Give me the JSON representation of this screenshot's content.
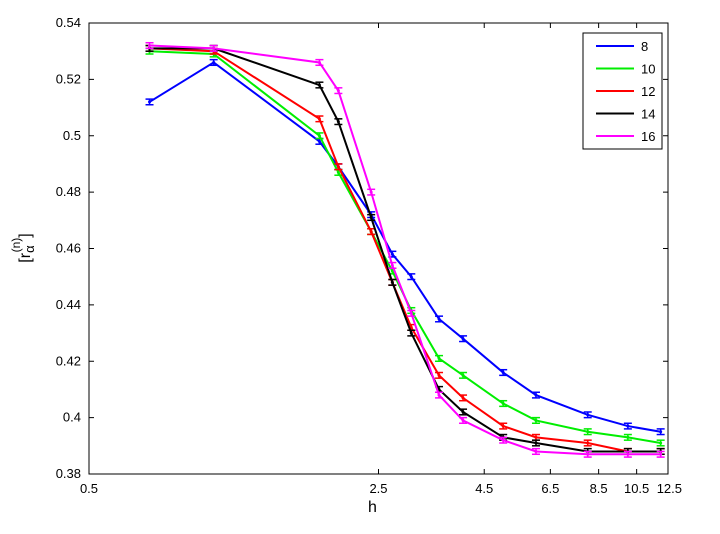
{
  "chart_data": {
    "type": "line",
    "xlabel": "h",
    "ylabel": "[r",
    "ylabel_sub": "α",
    "ylabel_sup": "(n)",
    "ylabel_close": "]",
    "x_scale": "log",
    "xlim": [
      0.5,
      12.5
    ],
    "ylim": [
      0.38,
      0.54
    ],
    "x_ticks": [
      0.5,
      2.5,
      4.5,
      6.5,
      8.5,
      10.5,
      12.5
    ],
    "x_tick_labels": [
      "0.5",
      "2.5",
      "4.5",
      "6.5",
      "8.5",
      "10.5",
      "12.5"
    ],
    "y_ticks": [
      0.38,
      0.4,
      0.42,
      0.44,
      0.46,
      0.48,
      0.5,
      0.52,
      0.54
    ],
    "y_tick_labels": [
      "0.38",
      "0.4",
      "0.42",
      "0.44",
      "0.46",
      "0.48",
      "0.5",
      "0.52",
      "0.54"
    ],
    "legend_position": "top-right",
    "x": [
      0.7,
      1.0,
      1.8,
      2.0,
      2.4,
      2.7,
      3.0,
      3.5,
      4.0,
      5.0,
      6.0,
      8.0,
      10.0,
      12.0
    ],
    "series": [
      {
        "name": "8",
        "color": "#0000ff",
        "values": [
          0.512,
          0.526,
          0.498,
          0.489,
          0.472,
          0.458,
          0.45,
          0.435,
          0.428,
          0.416,
          0.408,
          0.401,
          0.397,
          0.395
        ]
      },
      {
        "name": "10",
        "color": "#00ee00",
        "values": [
          0.53,
          0.529,
          0.5,
          0.487,
          0.466,
          0.452,
          0.438,
          0.421,
          0.415,
          0.405,
          0.399,
          0.395,
          0.393,
          0.391
        ]
      },
      {
        "name": "12",
        "color": "#ff0000",
        "values": [
          0.531,
          0.53,
          0.506,
          0.489,
          0.466,
          0.448,
          0.432,
          0.415,
          0.407,
          0.397,
          0.393,
          0.391,
          0.388,
          0.388
        ]
      },
      {
        "name": "14",
        "color": "#000000",
        "values": [
          0.531,
          0.531,
          0.518,
          0.505,
          0.471,
          0.448,
          0.43,
          0.41,
          0.402,
          0.393,
          0.391,
          0.388,
          0.388,
          0.388
        ]
      },
      {
        "name": "16",
        "color": "#ff00ff",
        "values": [
          0.532,
          0.531,
          0.526,
          0.516,
          0.48,
          0.454,
          0.437,
          0.408,
          0.399,
          0.392,
          0.388,
          0.387,
          0.387,
          0.387
        ]
      }
    ],
    "error": 0.001
  }
}
